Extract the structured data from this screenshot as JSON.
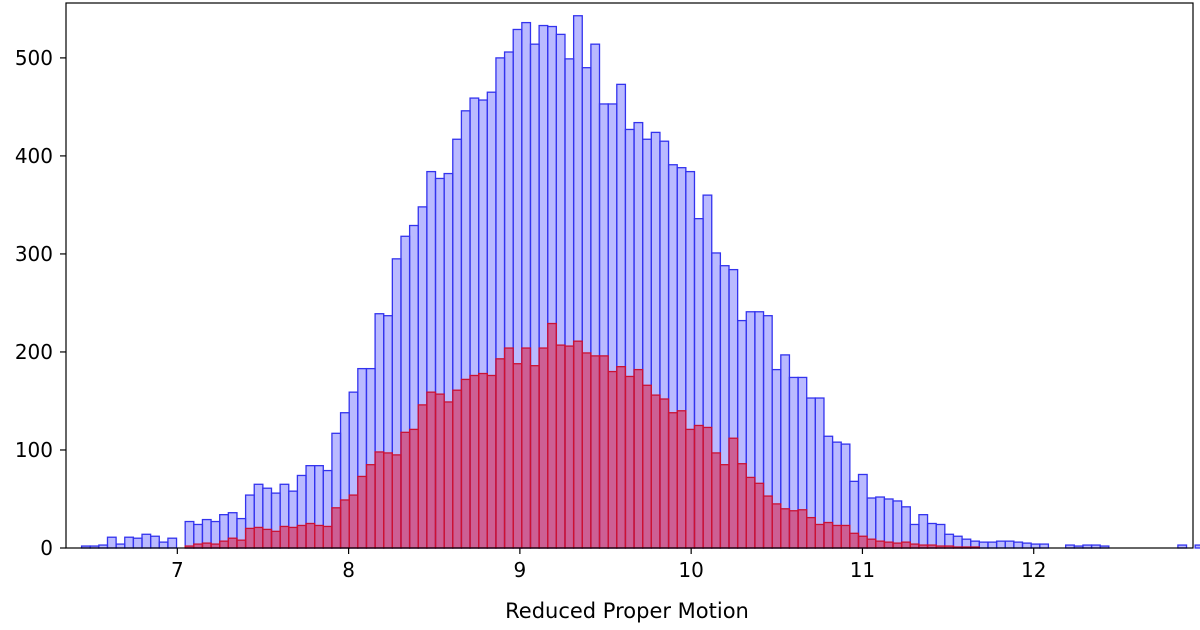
{
  "chart_data": {
    "type": "bar",
    "title": "",
    "xlabel": "Reduced Proper Motion",
    "ylabel": "",
    "xlim": [
      6.35,
      12.93
    ],
    "ylim": [
      0,
      556
    ],
    "xticks": [
      7,
      8,
      9,
      10,
      11,
      12
    ],
    "yticks": [
      0,
      100,
      200,
      300,
      400,
      500
    ],
    "bin_width": 0.0504,
    "bin_start": 6.441,
    "grid": false,
    "colors": {
      "series_1": "#6666ff",
      "series_2": "#dc143c"
    },
    "series": [
      {
        "values": [
          2,
          2,
          3,
          11,
          4,
          11,
          10,
          14,
          12,
          6,
          10,
          0,
          27,
          24,
          29,
          27,
          34,
          36,
          30,
          54,
          65,
          61,
          56,
          65,
          58,
          74,
          84,
          84,
          79,
          117,
          138,
          159,
          183,
          183,
          239,
          237,
          295,
          318,
          329,
          348,
          384,
          377,
          382,
          417,
          446,
          459,
          457,
          465,
          500,
          506,
          529,
          536,
          514,
          533,
          532,
          524,
          499,
          543,
          490,
          514,
          453,
          453,
          473,
          427,
          434,
          417,
          424,
          415,
          391,
          388,
          384,
          336,
          360,
          301,
          288,
          284,
          232,
          241,
          241,
          237,
          182,
          197,
          174,
          174,
          153,
          153,
          114,
          108,
          106,
          68,
          75,
          51,
          52,
          50,
          48,
          42,
          24,
          34,
          25,
          24,
          14,
          12,
          9,
          7,
          6,
          6,
          7,
          7,
          6,
          5,
          4,
          4,
          0,
          0,
          3,
          2,
          3,
          3,
          2,
          0,
          0,
          0,
          0,
          0,
          0,
          0,
          0,
          3,
          0,
          3
        ]
      },
      {
        "values": [
          0,
          0,
          0,
          0,
          0,
          0,
          0,
          0,
          0,
          0,
          0,
          0,
          2,
          4,
          5,
          4,
          7,
          10,
          8,
          20,
          21,
          19,
          17,
          22,
          21,
          23,
          25,
          23,
          22,
          41,
          49,
          54,
          73,
          85,
          98,
          97,
          95,
          118,
          121,
          146,
          159,
          157,
          149,
          161,
          172,
          176,
          178,
          176,
          193,
          204,
          188,
          204,
          186,
          204,
          229,
          207,
          206,
          211,
          199,
          196,
          196,
          180,
          185,
          175,
          182,
          166,
          156,
          152,
          138,
          140,
          121,
          125,
          123,
          97,
          85,
          112,
          86,
          72,
          66,
          53,
          45,
          40,
          38,
          39,
          31,
          24,
          26,
          23,
          23,
          15,
          12,
          9,
          7,
          6,
          5,
          6,
          4,
          3,
          3,
          2,
          2,
          1,
          1,
          1,
          0,
          0,
          0,
          0,
          0,
          0,
          0,
          0,
          0,
          0,
          0,
          0,
          0,
          0,
          0,
          0,
          0,
          0,
          0,
          0,
          0,
          0,
          0,
          0,
          0,
          0
        ]
      }
    ]
  }
}
